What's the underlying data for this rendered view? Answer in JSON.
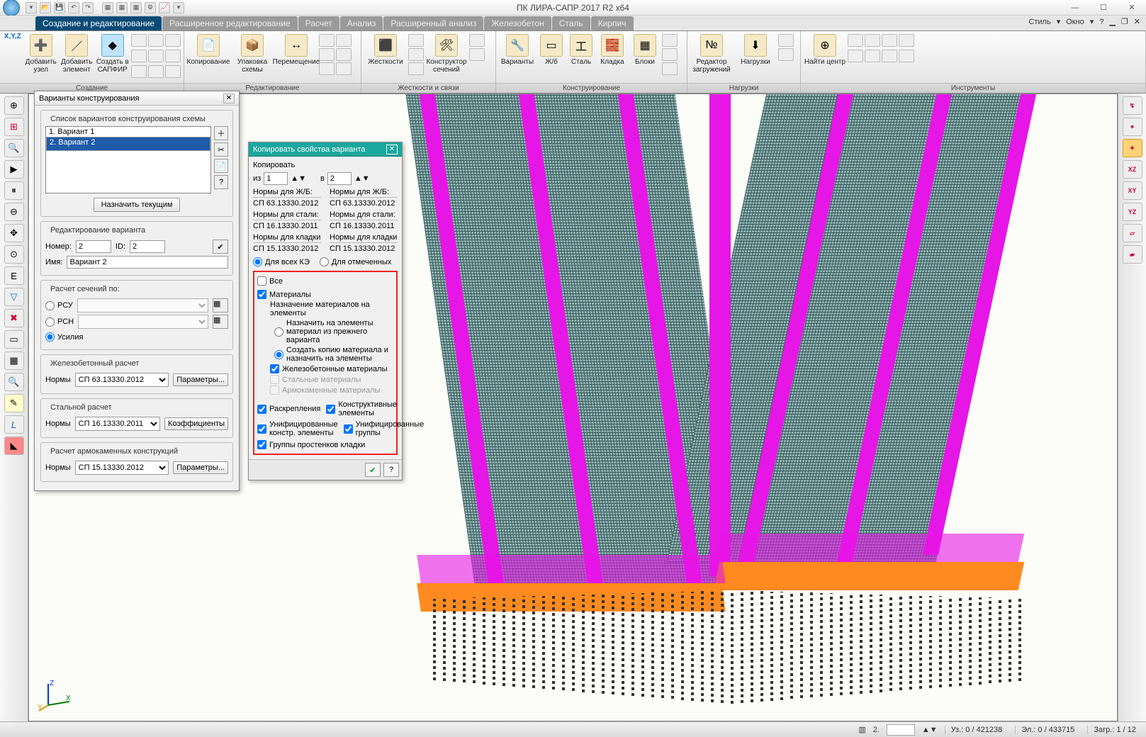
{
  "app": {
    "title": "ПК ЛИРА-САПР  2017 R2 x64"
  },
  "menu_right": {
    "style": "Стиль",
    "window": "Окно"
  },
  "tabs": {
    "active": "Создание и редактирование",
    "list": [
      "Создание и редактирование",
      "Расширенное редактирование",
      "Расчет",
      "Анализ",
      "Расширенный анализ",
      "Железобетон",
      "Сталь",
      "Кирпич"
    ]
  },
  "ribbon": {
    "g1": {
      "label": "Создание",
      "b1": "Добавить узел",
      "b2": "Добавить элемент",
      "b3": "Создать в САПФИР",
      "xyz": "X,Y,Z"
    },
    "g2": {
      "label": "Редактирование",
      "b1": "Копирование",
      "b2": "Упаковка схемы",
      "b3": "Перемещение"
    },
    "g3": {
      "label": "Жесткости и связи",
      "b1": "Жесткости",
      "b2": "Конструктор сечений"
    },
    "g4": {
      "label": "Конструирование",
      "b1": "Варианты",
      "b2": "Ж/б",
      "b3": "Сталь",
      "b4": "Кладка",
      "b5": "Блоки"
    },
    "g5": {
      "label": "Нагрузки",
      "b1": "Редактор загружений",
      "b2": "Нагрузки"
    },
    "g6": {
      "label": "Инструменты",
      "b1": "Найти центр"
    }
  },
  "dlg1": {
    "title": "Варианты конструирования",
    "list_label": "Список вариантов конструирования схемы",
    "items": [
      "1. Вариант 1",
      "2. Вариант 2"
    ],
    "assign_current": "Назначить текущим",
    "edit_label": "Редактирование варианта",
    "number_l": "Номер:",
    "number_v": "2",
    "id_l": "ID:",
    "id_v": "2",
    "name_l": "Имя:",
    "name_v": "Вариант 2",
    "calc_by": "Расчет сечений по:",
    "rcu": "РСУ",
    "rcn": "РСН",
    "forces": "Усилия",
    "rc_group": "Железобетонный  расчет",
    "rc_norm_l": "Нормы",
    "rc_norm_v": "СП 63.13330.2012",
    "rc_params": "Параметры...",
    "st_group": "Стальной расчет",
    "st_norm_l": "Нормы",
    "st_norm_v": "СП 16.13330.2011",
    "st_params": "Коэффициенты",
    "mk_group": "Расчет армокаменных конструкций",
    "mk_norm_l": "Нормы",
    "mk_norm_v": "СП 15.13330.2012",
    "mk_params": "Параметры..."
  },
  "dlg2": {
    "title": "Копировать свойства варианта",
    "copy": "Копировать",
    "from_l": "из",
    "from_v": "1",
    "to_l": "в",
    "to_v": "2",
    "nrc_l": "Нормы для Ж/Б:",
    "nrc_v": "СП 63.13330.2012",
    "nst_l": "Нормы для стали:",
    "nst_v": "СП 16.13330.2011",
    "nmk_l": "Нормы для кладки",
    "nmk_v": "СП 15.13330.2012",
    "for_all": "Для всех КЭ",
    "for_marked": "Для отмеченных",
    "all": "Все",
    "materials": "Материалы",
    "mat_assign_h": "Назначение материалов на элементы",
    "mat_r1": "Назначить на элементы материал из прежнего варианта",
    "mat_r2": "Создать копию материала и назначить на элементы",
    "rc_mat": "Железобетонные материалы",
    "st_mat": "Стальные материалы",
    "mk_mat": "Армокаменные материалы",
    "rasc": "Раскрепления",
    "kel": "Конструктивные элементы",
    "uke": "Унифицированные констр. элементы",
    "ugr": "Унифицированные группы",
    "gps": "Группы простенков кладки"
  },
  "status": {
    "layer_l": "2.",
    "uz": "Уз.: 0 / 421238",
    "el": "Эл.: 0 / 433715",
    "zag": "Загр.: 1 / 12"
  },
  "colors": {
    "accent": "#1aa79d",
    "select": "#1e5ba8",
    "magenta": "#e616e6",
    "orange": "#ff8a1f",
    "mesh": "#8fb3b3",
    "red": "#e22222"
  }
}
